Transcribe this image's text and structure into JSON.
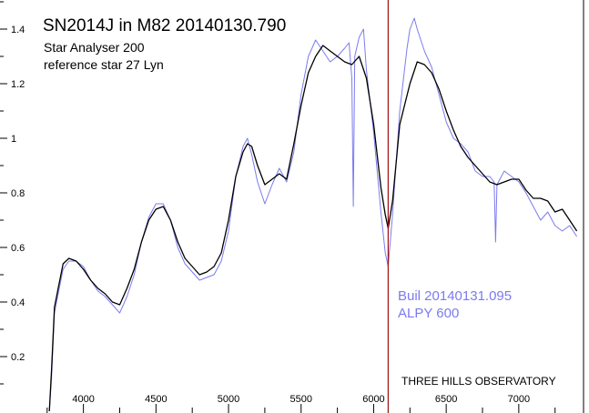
{
  "chart_data": {
    "type": "line",
    "title": "SN2014J in M82   20140130.790",
    "subtitle_lines": [
      "Star Analyser 200",
      "reference star 27 Lyn"
    ],
    "xlabel": "",
    "ylabel": "",
    "xlim": [
      3720,
      7440
    ],
    "ylim": [
      0.0,
      1.5
    ],
    "xticks": [
      4000,
      4500,
      5000,
      5500,
      6000,
      6500,
      7000
    ],
    "xtick_labels": [
      "4000",
      "4500",
      "5000",
      "5500",
      "6000",
      "6500",
      "7000"
    ],
    "yticks": [
      0.2,
      0.4,
      0.6,
      0.8,
      1.0,
      1.2,
      1.4
    ],
    "ytick_labels": [
      "0.2",
      "0.4",
      "0.6",
      "0.8",
      "1",
      "1.2",
      "1.4"
    ],
    "grid": false,
    "vertical_marker": {
      "x": 6100,
      "color": "#a01010"
    },
    "comparison_label_lines": [
      "Buil 20140131.095",
      "ALPY 600"
    ],
    "footer": "THREE HILLS OBSERVATORY",
    "series": [
      {
        "color": "#000000",
        "x": [
          3765,
          3780,
          3800,
          3830,
          3860,
          3900,
          3950,
          4000,
          4050,
          4100,
          4150,
          4200,
          4250,
          4300,
          4350,
          4400,
          4450,
          4500,
          4550,
          4600,
          4650,
          4700,
          4750,
          4800,
          4850,
          4900,
          4950,
          5000,
          5050,
          5100,
          5130,
          5160,
          5200,
          5250,
          5300,
          5350,
          5400,
          5450,
          5500,
          5550,
          5600,
          5650,
          5700,
          5750,
          5800,
          5850,
          5900,
          5950,
          6000,
          6050,
          6080,
          6100,
          6130,
          6180,
          6250,
          6300,
          6350,
          6400,
          6450,
          6500,
          6550,
          6600,
          6650,
          6700,
          6750,
          6800,
          6850,
          6900,
          6950,
          7000,
          7050,
          7100,
          7150,
          7200,
          7250,
          7300,
          7350,
          7400
        ],
        "y": [
          0.0,
          0.15,
          0.38,
          0.46,
          0.54,
          0.56,
          0.55,
          0.52,
          0.48,
          0.45,
          0.43,
          0.4,
          0.39,
          0.45,
          0.52,
          0.62,
          0.7,
          0.74,
          0.75,
          0.7,
          0.62,
          0.56,
          0.53,
          0.5,
          0.51,
          0.53,
          0.58,
          0.7,
          0.86,
          0.95,
          0.98,
          0.97,
          0.9,
          0.83,
          0.85,
          0.87,
          0.85,
          0.98,
          1.12,
          1.24,
          1.3,
          1.34,
          1.32,
          1.3,
          1.28,
          1.27,
          1.3,
          1.22,
          1.05,
          0.82,
          0.72,
          0.67,
          0.77,
          1.05,
          1.2,
          1.28,
          1.27,
          1.24,
          1.18,
          1.1,
          1.03,
          0.97,
          0.93,
          0.9,
          0.87,
          0.84,
          0.83,
          0.84,
          0.85,
          0.85,
          0.81,
          0.78,
          0.78,
          0.77,
          0.73,
          0.74,
          0.7,
          0.66
        ]
      },
      {
        "color": "#7b7bef",
        "x": [
          3765,
          3780,
          3800,
          3830,
          3860,
          3900,
          3950,
          4000,
          4050,
          4100,
          4150,
          4200,
          4250,
          4300,
          4350,
          4400,
          4450,
          4500,
          4550,
          4600,
          4650,
          4700,
          4750,
          4800,
          4850,
          4900,
          4950,
          5000,
          5050,
          5100,
          5130,
          5160,
          5200,
          5250,
          5300,
          5350,
          5400,
          5450,
          5500,
          5550,
          5600,
          5650,
          5700,
          5750,
          5800,
          5830,
          5850,
          5860,
          5870,
          5900,
          5930,
          5950,
          6000,
          6050,
          6080,
          6100,
          6130,
          6180,
          6230,
          6250,
          6280,
          6300,
          6350,
          6400,
          6450,
          6500,
          6550,
          6600,
          6650,
          6700,
          6750,
          6800,
          6830,
          6840,
          6850,
          6880,
          6900,
          6950,
          7000,
          7050,
          7100,
          7150,
          7200,
          7250,
          7300,
          7350,
          7400
        ],
        "y": [
          0.0,
          0.12,
          0.36,
          0.44,
          0.52,
          0.55,
          0.55,
          0.53,
          0.48,
          0.44,
          0.42,
          0.39,
          0.36,
          0.42,
          0.5,
          0.62,
          0.71,
          0.76,
          0.76,
          0.7,
          0.6,
          0.54,
          0.51,
          0.48,
          0.49,
          0.5,
          0.55,
          0.66,
          0.86,
          0.97,
          1.0,
          0.94,
          0.84,
          0.76,
          0.83,
          0.89,
          0.84,
          0.95,
          1.16,
          1.3,
          1.36,
          1.32,
          1.28,
          1.3,
          1.33,
          1.35,
          1.22,
          0.75,
          1.3,
          1.37,
          1.4,
          1.25,
          1.02,
          0.73,
          0.58,
          0.53,
          0.72,
          1.1,
          1.33,
          1.4,
          1.44,
          1.4,
          1.32,
          1.26,
          1.16,
          1.06,
          1.0,
          0.98,
          0.95,
          0.88,
          0.86,
          0.86,
          0.84,
          0.62,
          0.83,
          0.86,
          0.88,
          0.86,
          0.84,
          0.8,
          0.75,
          0.7,
          0.73,
          0.68,
          0.66,
          0.68,
          0.64
        ]
      }
    ]
  }
}
